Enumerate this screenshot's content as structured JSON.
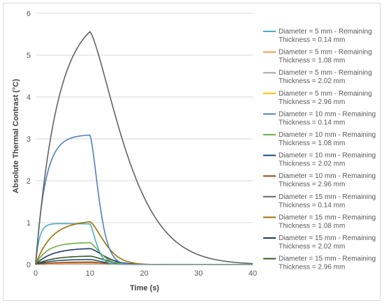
{
  "chart_data": {
    "type": "line",
    "title": "",
    "xlabel": "Time (s)",
    "ylabel": "Absolute Thermal Contrast (°C)",
    "xlim": [
      0,
      40
    ],
    "ylim": [
      0,
      6
    ],
    "xticks": [
      0,
      10,
      20,
      30,
      40
    ],
    "yticks": [
      0,
      1,
      2,
      3,
      4,
      5,
      6
    ],
    "grid": "horizontal",
    "legend_position": "right",
    "heating_end_s": 10,
    "series": [
      {
        "name": "Diameter = 5 mm - Remaining Thickness = 0.14 mm",
        "color": "#4bacc6",
        "peak": 0.97,
        "early_peak": 0.98,
        "rise_tau": 0.7,
        "decay_tau": 1.6
      },
      {
        "name": "Diameter = 5 mm - Remaining Thickness = 1.08 mm",
        "color": "#f79646",
        "peak": 0.04,
        "rise_tau": 3.5,
        "decay_tau": 5.0
      },
      {
        "name": "Diameter = 5 mm - Remaining Thickness = 2.02 mm",
        "color": "#a5a5a5",
        "peak": 0.01,
        "rise_tau": 4.0,
        "decay_tau": 5.0
      },
      {
        "name": "Diameter = 5 mm - Remaining Thickness = 2.96 mm",
        "color": "#ffc000",
        "peak": 0.005,
        "rise_tau": 4.0,
        "decay_tau": 5.0
      },
      {
        "name": "Diameter = 10 mm - Remaining Thickness = 0.14 mm",
        "color": "#4f81bd",
        "peak": 3.09,
        "rise_tau": 1.8,
        "decay_tau": 2.2
      },
      {
        "name": "Diameter = 10 mm - Remaining Thickness = 1.08 mm",
        "color": "#70ad47",
        "peak": 0.52,
        "rise_tau": 2.2,
        "decay_tau": 2.6
      },
      {
        "name": "Diameter = 10 mm - Remaining Thickness = 2.02 mm",
        "color": "#1f4e79",
        "peak": 0.12,
        "rise_tau": 3.0,
        "decay_tau": 3.2
      },
      {
        "name": "Diameter = 10 mm - Remaining Thickness = 2.96 mm",
        "color": "#9e480e",
        "peak": 0.06,
        "rise_tau": 3.5,
        "decay_tau": 3.5
      },
      {
        "name": "Diameter = 15 mm - Remaining Thickness = 0.14 mm",
        "color": "#636363",
        "peak": 5.56,
        "rise_tau": 4.0,
        "decay_tau": 4.3
      },
      {
        "name": "Diameter = 15 mm - Remaining Thickness = 1.08 mm",
        "color": "#997300",
        "peak": 1.02,
        "rise_tau": 3.0,
        "decay_tau": 3.6
      },
      {
        "name": "Diameter = 15 mm - Remaining Thickness = 2.02 mm",
        "color": "#203864",
        "peak": 0.38,
        "rise_tau": 3.0,
        "decay_tau": 3.6
      },
      {
        "name": "Diameter = 15 mm - Remaining Thickness = 2.96 mm",
        "color": "#385723",
        "peak": 0.2,
        "rise_tau": 3.2,
        "decay_tau": 3.8
      }
    ]
  }
}
